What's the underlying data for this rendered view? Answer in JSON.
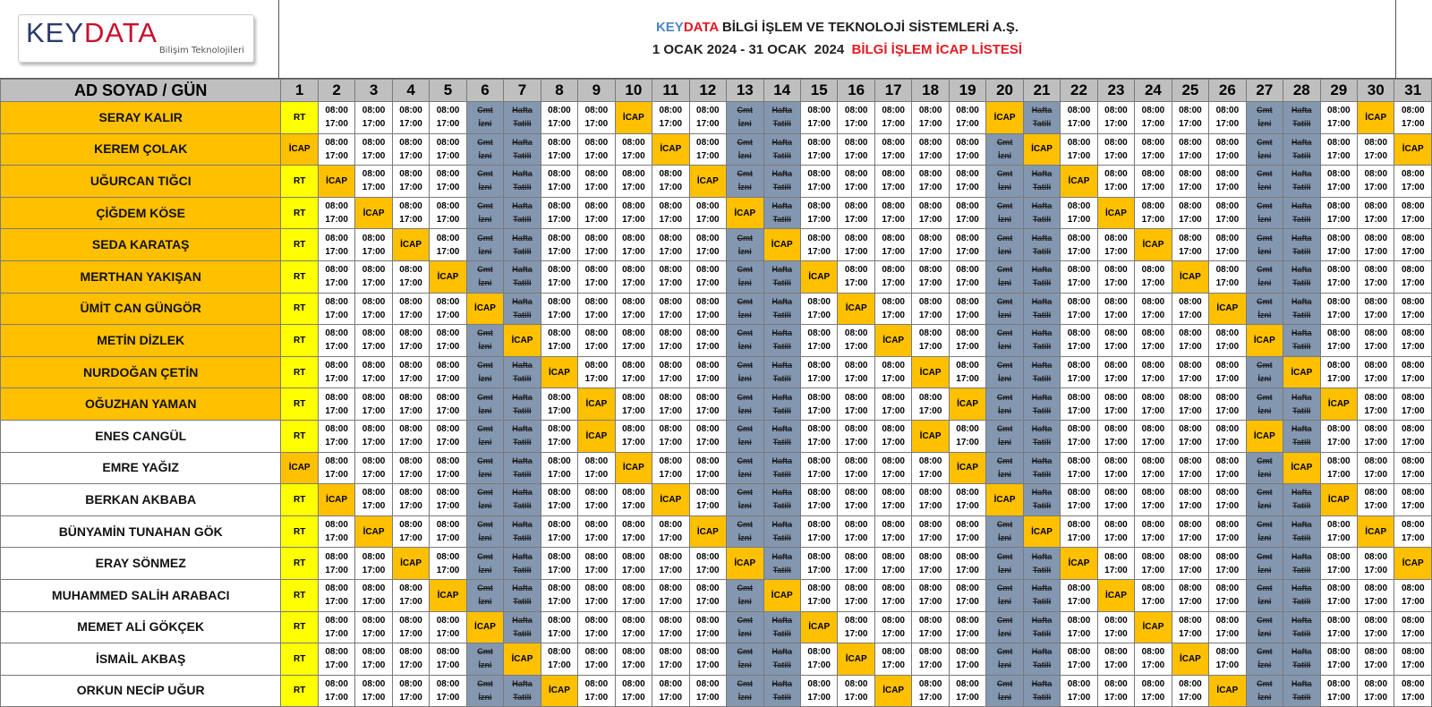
{
  "logo": {
    "brand_left": "KEY",
    "brand_right": "DATA",
    "subtitle": "Bilişim Teknolojileri"
  },
  "title": {
    "line1_key": "KEY",
    "line1_data": "DATA",
    "line1_rest": " BİLGİ İŞLEM VE TEKNOLOJİ SİSTEMLERİ A.Ş.",
    "line2_dates": "1 OCAK 2024 - 31 OCAK  2024",
    "line2_red": "BİLGİ İŞLEM İCAP LİSTESİ"
  },
  "table": {
    "name_header": "AD SOYAD / GÜN",
    "days": [
      "1",
      "2",
      "3",
      "4",
      "5",
      "6",
      "7",
      "8",
      "9",
      "10",
      "11",
      "12",
      "13",
      "14",
      "15",
      "16",
      "17",
      "18",
      "19",
      "20",
      "21",
      "22",
      "23",
      "24",
      "25",
      "26",
      "27",
      "28",
      "29",
      "30",
      "31"
    ],
    "saturday_days": [
      6,
      13,
      20,
      27
    ],
    "sunday_days": [
      7,
      14,
      21,
      28
    ],
    "labels": {
      "work_start": "08:00",
      "work_end": "17:00",
      "icap": "İCAP",
      "rt": "RT",
      "sat_line1": "Cmt",
      "sat_line2": "İzni",
      "sun_line1": "Hafta",
      "sun_line2": "Tatili"
    },
    "colors": {
      "header_bg": "#bfbfbf",
      "icap": "#ffc000",
      "rt": "#ffff00",
      "weekend": "#8497b0"
    },
    "rows": [
      {
        "name": "SERAY KALIR",
        "highlighted": true,
        "day1": "RT",
        "icap_days": [
          10,
          20,
          30
        ]
      },
      {
        "name": "KEREM ÇOLAK",
        "highlighted": true,
        "day1": "İCAP",
        "icap_days": [
          11,
          21,
          31
        ]
      },
      {
        "name": "UĞURCAN TIĞCI",
        "highlighted": true,
        "day1": "RT",
        "icap_days": [
          2,
          12,
          22
        ]
      },
      {
        "name": "ÇİĞDEM KÖSE",
        "highlighted": true,
        "day1": "RT",
        "icap_days": [
          3,
          13,
          23
        ]
      },
      {
        "name": "SEDA KARATAŞ",
        "highlighted": true,
        "day1": "RT",
        "icap_days": [
          4,
          14,
          24
        ]
      },
      {
        "name": "MERTHAN YAKIŞAN",
        "highlighted": true,
        "day1": "RT",
        "icap_days": [
          5,
          15,
          25
        ]
      },
      {
        "name": "ÜMİT CAN GÜNGÖR",
        "highlighted": true,
        "day1": "RT",
        "icap_days": [
          6,
          16,
          26
        ]
      },
      {
        "name": "METİN DİZLEK",
        "highlighted": true,
        "day1": "RT",
        "icap_days": [
          7,
          17,
          27
        ]
      },
      {
        "name": "NURDOĞAN ÇETİN",
        "highlighted": true,
        "day1": "RT",
        "icap_days": [
          8,
          18,
          28
        ]
      },
      {
        "name": "OĞUZHAN YAMAN",
        "highlighted": true,
        "day1": "RT",
        "icap_days": [
          9,
          19,
          29
        ]
      },
      {
        "name": "ENES CANGÜL",
        "highlighted": false,
        "day1": "RT",
        "icap_days": [
          9,
          18,
          27
        ]
      },
      {
        "name": "EMRE YAĞIZ",
        "highlighted": false,
        "day1": "İCAP",
        "icap_days": [
          10,
          19,
          28
        ]
      },
      {
        "name": "BERKAN AKBABA",
        "highlighted": false,
        "day1": "RT",
        "icap_days": [
          2,
          11,
          20,
          29
        ]
      },
      {
        "name": "BÜNYAMİN TUNAHAN GÖK",
        "highlighted": false,
        "day1": "RT",
        "icap_days": [
          3,
          12,
          21,
          30
        ]
      },
      {
        "name": "ERAY SÖNMEZ",
        "highlighted": false,
        "day1": "RT",
        "icap_days": [
          4,
          13,
          22,
          31
        ]
      },
      {
        "name": "MUHAMMED SALİH ARABACI",
        "highlighted": false,
        "day1": "RT",
        "icap_days": [
          5,
          14,
          23
        ]
      },
      {
        "name": "MEMET ALİ GÖKÇEK",
        "highlighted": false,
        "day1": "RT",
        "icap_days": [
          6,
          15,
          24
        ]
      },
      {
        "name": "İSMAİL AKBAŞ",
        "highlighted": false,
        "day1": "RT",
        "icap_days": [
          7,
          16,
          25
        ]
      },
      {
        "name": "ORKUN NECİP UĞUR",
        "highlighted": false,
        "day1": "RT",
        "icap_days": [
          8,
          17,
          26
        ]
      }
    ]
  }
}
